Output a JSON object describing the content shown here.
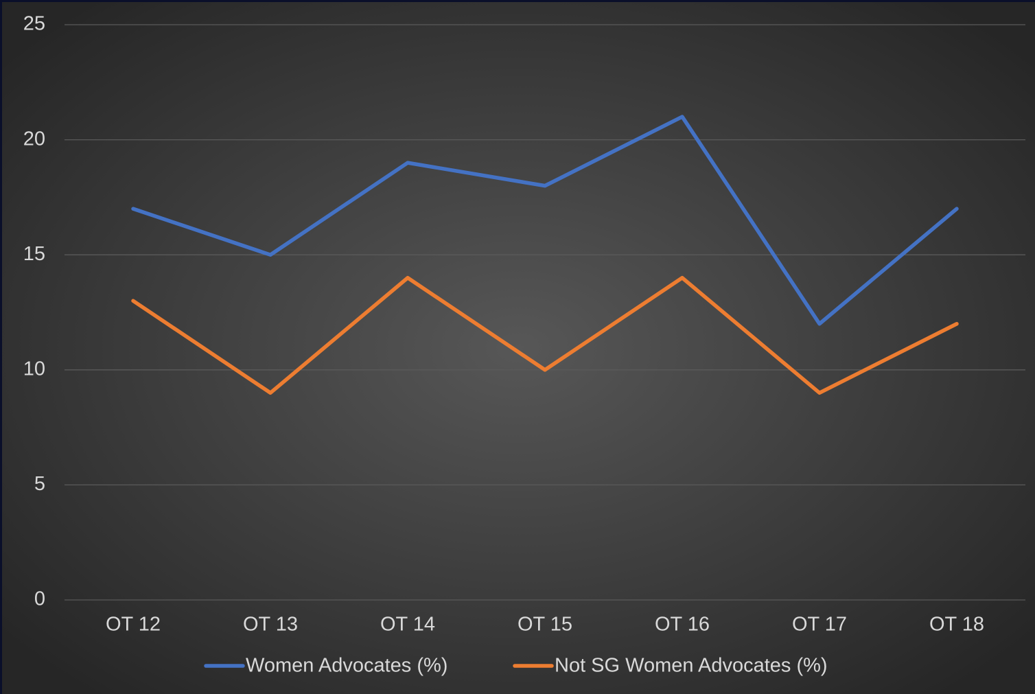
{
  "chart_data": {
    "type": "line",
    "categories": [
      "OT 12",
      "OT 13",
      "OT 14",
      "OT 15",
      "OT 16",
      "OT 17",
      "OT 18"
    ],
    "series": [
      {
        "name": "Women Advocates (%)",
        "color": "#4472c4",
        "values": [
          17,
          15,
          19,
          18,
          21,
          12,
          17
        ]
      },
      {
        "name": "Not SG Women Advocates (%)",
        "color": "#ed7d31",
        "values": [
          13,
          9,
          14,
          10,
          14,
          9,
          12
        ]
      }
    ],
    "ylim": [
      0,
      25
    ],
    "yticks": [
      0,
      5,
      10,
      15,
      20,
      25
    ],
    "grid": true,
    "legend": "bottom"
  }
}
